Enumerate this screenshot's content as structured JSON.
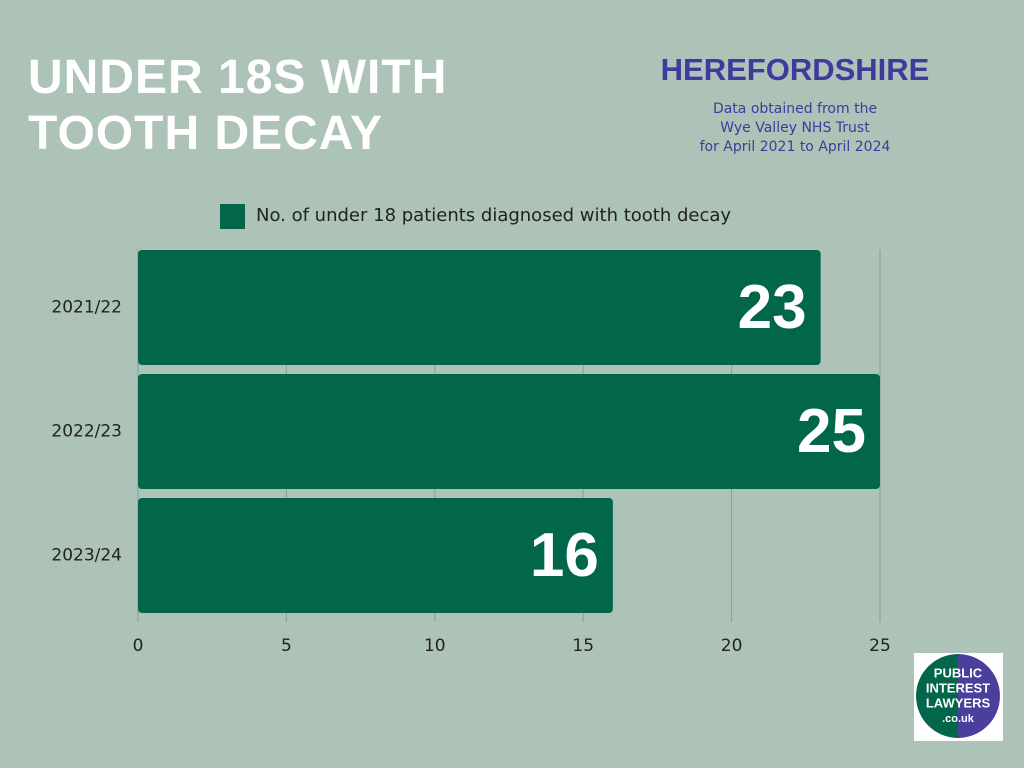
{
  "chart_data": {
    "type": "bar",
    "orientation": "horizontal",
    "title": "UNDER 18S WITH TOOTH DECAY",
    "subtitle": "HEREFORDSHIRE",
    "note": [
      "Data obtained from the",
      "Wye Valley NHS Trust",
      "for April 2021 to April 2024"
    ],
    "categories": [
      "2021/22",
      "2022/23",
      "2023/24"
    ],
    "series": [
      {
        "name": "No. of under 18 patients diagnosed with tooth decay",
        "color": "#02664a",
        "values": [
          23,
          25,
          16
        ]
      }
    ],
    "xlim": [
      0,
      25
    ],
    "xticks": [
      0,
      5,
      10,
      15,
      20,
      25
    ],
    "grid": true,
    "legend": "top"
  },
  "logo": [
    "PUBLIC",
    "INTEREST",
    "LAWYERS",
    ".co.uk"
  ]
}
